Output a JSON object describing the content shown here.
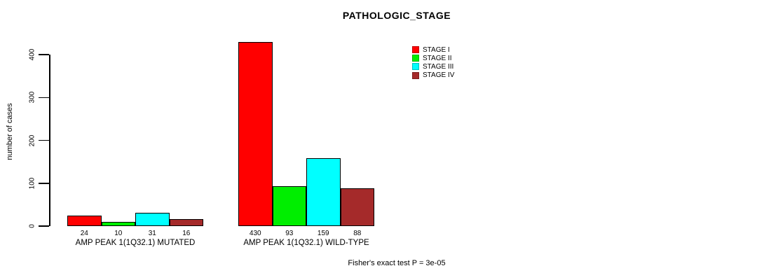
{
  "chart_data": {
    "type": "bar",
    "title": "PATHOLOGIC_STAGE",
    "ylabel": "number of cases",
    "xlabel": "",
    "ylim": [
      0,
      400
    ],
    "yticks": [
      0,
      100,
      200,
      300,
      400
    ],
    "grid": false,
    "legend_position": "top-right",
    "categories": [
      "AMP PEAK 1(1Q32.1) MUTATED",
      "AMP PEAK 1(1Q32.1) WILD-TYPE"
    ],
    "series": [
      {
        "name": "STAGE I",
        "color": "#FF0000",
        "values": [
          24,
          430
        ]
      },
      {
        "name": "STAGE II",
        "color": "#00EE00",
        "values": [
          10,
          93
        ]
      },
      {
        "name": "STAGE III",
        "color": "#00FFFF",
        "values": [
          31,
          159
        ]
      },
      {
        "name": "STAGE IV",
        "color": "#A52A2A",
        "values": [
          16,
          88
        ]
      }
    ],
    "bar_value_labels": [
      [
        24,
        10,
        31,
        16
      ],
      [
        430,
        93,
        159,
        88
      ]
    ],
    "annotation": "Fisher's exact test P = 3e-05"
  }
}
